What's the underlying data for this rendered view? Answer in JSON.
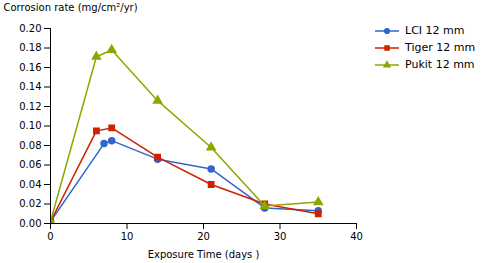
{
  "chart_data": {
    "type": "line",
    "xlabel": "Exposure Time (days )",
    "ylabel": "Corrosion rate (mg/cm²/yr)",
    "xlim": [
      0,
      40
    ],
    "ylim": [
      0,
      0.2
    ],
    "xticks": [
      0,
      10,
      20,
      30,
      40
    ],
    "yticks": [
      {
        "value": 0,
        "label": "0.00"
      },
      0.02,
      0.04,
      0.06,
      0.08,
      {
        "value": 0.1,
        "label": "0.10"
      },
      0.12,
      0.14,
      0.16,
      0.18,
      {
        "value": 0.2,
        "label": "0.20"
      }
    ],
    "legend": "right",
    "series": [
      {
        "name": "LCI 12 mm",
        "color": "#3366cc",
        "marker": "circle",
        "x": [
          0,
          7,
          8,
          14,
          21,
          28,
          35
        ],
        "values": [
          0.002,
          0.082,
          0.085,
          0.066,
          0.056,
          0.016,
          0.013
        ]
      },
      {
        "name": "Tiger 12 mm",
        "color": "#cc2200",
        "marker": "square",
        "x": [
          0,
          6,
          8,
          14,
          21,
          28,
          35
        ],
        "values": [
          0.002,
          0.095,
          0.098,
          0.068,
          0.04,
          0.02,
          0.01
        ]
      },
      {
        "name": "Pukit 12 mm",
        "color": "#88aa00",
        "marker": "triangle",
        "x": [
          0,
          6,
          8,
          14,
          21,
          28,
          35
        ],
        "values": [
          0.002,
          0.171,
          0.178,
          0.126,
          0.078,
          0.018,
          0.022
        ]
      }
    ]
  }
}
